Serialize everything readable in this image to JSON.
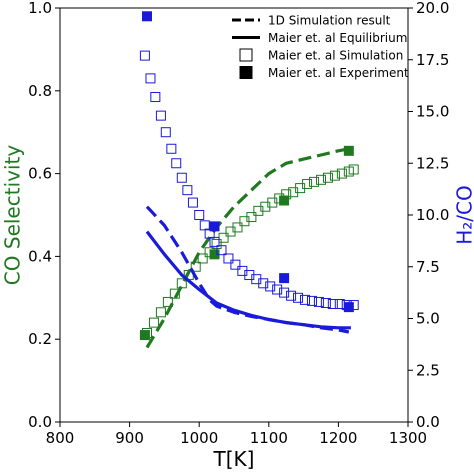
{
  "chart_data": {
    "type": "scatter",
    "xlabel": "T[K]",
    "ylabel_left": "CO Selectivity",
    "ylabel_right": "H₂/CO",
    "xlim": [
      800,
      1300
    ],
    "ylim_left": [
      0.0,
      1.0
    ],
    "ylim_right": [
      0.0,
      20.0
    ],
    "xticks": [
      "800",
      "900",
      "1000",
      "1100",
      "1200",
      "1300"
    ],
    "yticks_left": [
      "0.0",
      "0.2",
      "0.4",
      "0.6",
      "0.8",
      "1.0"
    ],
    "yticks_right": [
      "0.0",
      "2.5",
      "5.0",
      "7.5",
      "10.0",
      "12.5",
      "15.0",
      "17.5",
      "20.0"
    ],
    "grid": false,
    "legend_position": "top-right",
    "colors": {
      "selectivity": "#1f7a1f",
      "ratio": "#1a1adb",
      "legend": "#000000"
    },
    "legend": [
      {
        "label": "1D Simulation result",
        "style": "dashed-line"
      },
      {
        "label": "Maier et. al Equilibrium",
        "style": "solid-line"
      },
      {
        "label": "Maier et. al Simulation",
        "style": "open-square"
      },
      {
        "label": "Maier et. al Experiment",
        "style": "filled-square"
      }
    ],
    "series": [
      {
        "axis": "left",
        "color": "selectivity",
        "style": "dashed-line",
        "x": [
          925,
          950,
          975,
          1000,
          1025,
          1050,
          1075,
          1100,
          1125,
          1150,
          1175,
          1200,
          1215
        ],
        "y": [
          0.18,
          0.25,
          0.33,
          0.41,
          0.47,
          0.52,
          0.56,
          0.6,
          0.625,
          0.635,
          0.645,
          0.655,
          0.66
        ]
      },
      {
        "axis": "left",
        "color": "selectivity",
        "style": "open-square",
        "x": [
          925,
          935,
          945,
          955,
          965,
          975,
          985,
          995,
          1005,
          1015,
          1025,
          1035,
          1045,
          1055,
          1065,
          1075,
          1085,
          1095,
          1105,
          1115,
          1125,
          1135,
          1145,
          1155,
          1165,
          1175,
          1185,
          1195,
          1205,
          1215,
          1222
        ],
        "y": [
          0.215,
          0.24,
          0.265,
          0.29,
          0.31,
          0.335,
          0.355,
          0.375,
          0.395,
          0.41,
          0.43,
          0.445,
          0.46,
          0.47,
          0.485,
          0.495,
          0.51,
          0.52,
          0.53,
          0.54,
          0.55,
          0.555,
          0.565,
          0.575,
          0.58,
          0.585,
          0.59,
          0.595,
          0.6,
          0.605,
          0.61
        ]
      },
      {
        "axis": "left",
        "color": "selectivity",
        "style": "filled-square",
        "x": [
          922,
          1022,
          1122,
          1215
        ],
        "y": [
          0.21,
          0.405,
          0.535,
          0.655
        ]
      },
      {
        "axis": "right",
        "color": "ratio",
        "style": "dashed-line",
        "x": [
          925,
          950,
          975,
          1000,
          1015,
          1025,
          1050,
          1075,
          1100,
          1125,
          1150,
          1175,
          1200,
          1215
        ],
        "y": [
          10.4,
          9.5,
          8.2,
          6.7,
          5.9,
          5.6,
          5.3,
          5.1,
          4.95,
          4.8,
          4.7,
          4.55,
          4.45,
          4.35
        ]
      },
      {
        "axis": "right",
        "color": "ratio",
        "style": "solid-line",
        "x": [
          925,
          950,
          975,
          1000,
          1025,
          1050,
          1075,
          1100,
          1125,
          1150,
          1175,
          1200,
          1218
        ],
        "y": [
          9.2,
          8.1,
          7.1,
          6.4,
          5.75,
          5.4,
          5.15,
          4.95,
          4.8,
          4.7,
          4.6,
          4.55,
          4.55
        ]
      },
      {
        "axis": "right",
        "color": "ratio",
        "style": "open-square",
        "x": [
          922,
          930,
          937,
          945,
          952,
          960,
          967,
          975,
          983,
          991,
          1000,
          1008,
          1015,
          1022,
          1032,
          1042,
          1052,
          1062,
          1072,
          1082,
          1092,
          1102,
          1112,
          1122,
          1132,
          1142,
          1152,
          1162,
          1172,
          1182,
          1192,
          1202,
          1212,
          1222
        ],
        "y": [
          17.7,
          16.6,
          15.7,
          14.8,
          14.0,
          13.2,
          12.5,
          11.8,
          11.2,
          10.6,
          10.0,
          9.5,
          9.1,
          8.7,
          8.3,
          7.9,
          7.6,
          7.3,
          7.1,
          6.9,
          6.7,
          6.55,
          6.4,
          6.25,
          6.1,
          6.0,
          5.9,
          5.85,
          5.8,
          5.75,
          5.7,
          5.7,
          5.65,
          5.65
        ]
      },
      {
        "axis": "right",
        "color": "ratio",
        "style": "filled-square",
        "x": [
          925,
          1022,
          1122,
          1215
        ],
        "y": [
          19.6,
          9.45,
          6.95,
          5.55
        ]
      }
    ]
  }
}
